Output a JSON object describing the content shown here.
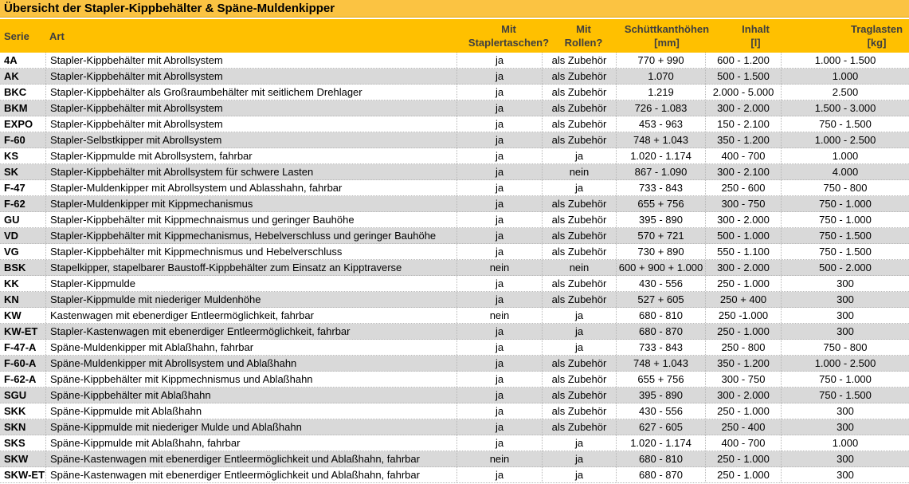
{
  "title": "Übersicht der Stapler-Kippbehälter & Späne-Muldenkipper",
  "colors": {
    "title_bg": "#FBC342",
    "title_text": "#000000",
    "header_bg": "#FFC000",
    "header_text": "#3F3F3F",
    "row_bg": "#FFFFFF",
    "row_alt_bg": "#D9D9D9",
    "grid_border": "#B7B7B7",
    "cell_text": "#000000"
  },
  "columns": [
    {
      "label": "Serie"
    },
    {
      "label": "Art"
    },
    {
      "line1": "Mit",
      "line2": "Staplertaschen?"
    },
    {
      "line1": "Mit",
      "line2": "Rollen?"
    },
    {
      "line1": "Schüttkanthöhen",
      "line2": "[mm]"
    },
    {
      "line1": "Inhalt",
      "line2": "[l]"
    },
    {
      "line1": "Traglasten",
      "line2": "[kg]"
    }
  ],
  "rows": [
    [
      "4A",
      "Stapler-Kippbehälter mit Abrollsystem",
      "ja",
      "als Zubehör",
      "770 + 990",
      "600 - 1.200",
      "1.000 - 1.500"
    ],
    [
      "AK",
      "Stapler-Kippbehälter mit Abrollsystem",
      "ja",
      "als Zubehör",
      "1.070",
      "500 - 1.500",
      "1.000"
    ],
    [
      "BKC",
      "Stapler-Kippbehälter als Großraumbehälter mit seitlichem Drehlager",
      "ja",
      "als Zubehör",
      "1.219",
      "2.000 - 5.000",
      "2.500"
    ],
    [
      "BKM",
      "Stapler-Kippbehälter mit Abrollsystem",
      "ja",
      "als Zubehör",
      "726 - 1.083",
      "300 - 2.000",
      "1.500 - 3.000"
    ],
    [
      "EXPO",
      "Stapler-Kippbehälter mit Abrollsystem",
      "ja",
      "als Zubehör",
      "453 - 963",
      "150 - 2.100",
      "750 - 1.500"
    ],
    [
      "F-60",
      "Stapler-Selbstkipper mit Abrollsystem",
      "ja",
      "als Zubehör",
      "748 + 1.043",
      "350 - 1.200",
      "1.000 - 2.500"
    ],
    [
      "KS",
      "Stapler-Kippmulde mit Abrollsystem, fahrbar",
      "ja",
      "ja",
      "1.020 - 1.174",
      "400 - 700",
      "1.000"
    ],
    [
      "SK",
      "Stapler-Kippbehälter mit Abrollsystem für schwere Lasten",
      "ja",
      "nein",
      "867 - 1.090",
      "300 - 2.100",
      "4.000"
    ],
    [
      "F-47",
      "Stapler-Muldenkipper mit Abrollsystem und Ablasshahn, fahrbar",
      "ja",
      "ja",
      "733 - 843",
      "250 - 600",
      "750 - 800"
    ],
    [
      "F-62",
      "Stapler-Muldenkipper mit Kippmechanismus",
      "ja",
      "als Zubehör",
      "655 + 756",
      "300 - 750",
      "750 - 1.000"
    ],
    [
      "GU",
      "Stapler-Kippbehälter mit Kippmechnaismus und geringer Bauhöhe",
      "ja",
      "als Zubehör",
      "395 - 890",
      "300 - 2.000",
      "750 - 1.000"
    ],
    [
      "VD",
      "Stapler-Kippbehälter mit Kippmechanismus, Hebelverschluss und geringer Bauhöhe",
      "ja",
      "als Zubehör",
      "570 + 721",
      "500 - 1.000",
      "750 - 1.500"
    ],
    [
      "VG",
      "Stapler-Kippbehälter mit Kippmechnismus und Hebelverschluss",
      "ja",
      "als Zubehör",
      "730 + 890",
      "550 - 1.100",
      "750 - 1.500"
    ],
    [
      "BSK",
      "Stapelkipper, stapelbarer Baustoff-Kippbehälter zum Einsatz an Kipptraverse",
      "nein",
      "nein",
      "600 + 900 + 1.000",
      "300 - 2.000",
      "500 - 2.000"
    ],
    [
      "KK",
      "Stapler-Kippmulde",
      "ja",
      "als Zubehör",
      "430 - 556",
      "250 - 1.000",
      "300"
    ],
    [
      "KN",
      "Stapler-Kippmulde mit niederiger Muldenhöhe",
      "ja",
      "als Zubehör",
      "527 + 605",
      "250 + 400",
      "300"
    ],
    [
      "KW",
      "Kastenwagen mit ebenerdiger Entleermöglichkeit, fahrbar",
      "nein",
      "ja",
      "680 - 810",
      "250 -1.000",
      "300"
    ],
    [
      "KW-ET",
      "Stapler-Kastenwagen mit ebenerdiger Entleermöglichkeit, fahrbar",
      "ja",
      "ja",
      "680 - 870",
      "250 - 1.000",
      "300"
    ],
    [
      "F-47-A",
      "Späne-Muldenkipper mit Ablaßhahn, fahrbar",
      "ja",
      "ja",
      "733 - 843",
      "250 - 800",
      "750 - 800"
    ],
    [
      "F-60-A",
      "Späne-Muldenkipper mit Abrollsystem und Ablaßhahn",
      "ja",
      "als Zubehör",
      "748 + 1.043",
      "350 - 1.200",
      "1.000 - 2.500"
    ],
    [
      "F-62-A",
      "Späne-Kippbehälter mit Kippmechnismus und Ablaßhahn",
      "ja",
      "als Zubehör",
      "655 + 756",
      "300 - 750",
      "750 - 1.000"
    ],
    [
      "SGU",
      "Späne-Kippbehälter mit Ablaßhahn",
      "ja",
      "als Zubehör",
      "395 - 890",
      "300 - 2.000",
      "750 - 1.500"
    ],
    [
      "SKK",
      "Späne-Kippmulde mit Ablaßhahn",
      "ja",
      "als Zubehör",
      "430 - 556",
      "250 - 1.000",
      "300"
    ],
    [
      "SKN",
      "Späne-Kippmulde mit niederiger Mulde und Ablaßhahn",
      "ja",
      "als Zubehör",
      "627 - 605",
      "250 - 400",
      "300"
    ],
    [
      "SKS",
      "Späne-Kippmulde mit Ablaßhahn, fahrbar",
      "ja",
      "ja",
      "1.020 - 1.174",
      "400 - 700",
      "1.000"
    ],
    [
      "SKW",
      "Späne-Kastenwagen mit ebenerdiger Entleermöglichkeit und Ablaßhahn, fahrbar",
      "nein",
      "ja",
      "680 - 810",
      "250 - 1.000",
      "300"
    ],
    [
      "SKW-ET",
      "Späne-Kastenwagen mit ebenerdiger Entleermöglichkeit und Ablaßhahn, fahrbar",
      "ja",
      "ja",
      "680 - 870",
      "250 - 1.000",
      "300"
    ]
  ]
}
